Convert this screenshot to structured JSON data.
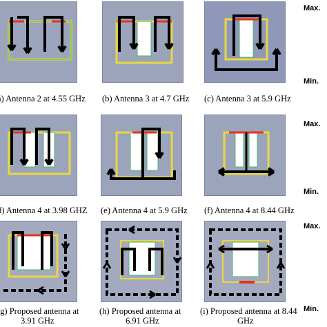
{
  "captions": {
    "a": "a) Antenna 2 at 4.55 GHz",
    "b": "(b) Antenna 3 at 4.7 GHz",
    "c": "(c) Antenna 3 at 5.9 GHz",
    "d": "d) Antenna 4 at 3.98 GHZ",
    "e": "(e) Antenna 4 at 5.9 GHz",
    "f": "(f) Antenna 4 at 8.44 GHz",
    "g1": "(g) Proposed antenna at",
    "g2": "3.91 GHz",
    "h1": "(h) Proposed antenna at",
    "h2": "6.91 GHz",
    "i1": "(i) Proposed antenna at 8.44",
    "i2": "GHz"
  },
  "scale": {
    "max": "Max.",
    "min": "Min."
  },
  "colors": {
    "background_field": "#9aa2bb",
    "arrow": "#000000",
    "current_high": "#e8321e",
    "current_mid": "#f2d233",
    "current_low": "#47b96a"
  }
}
